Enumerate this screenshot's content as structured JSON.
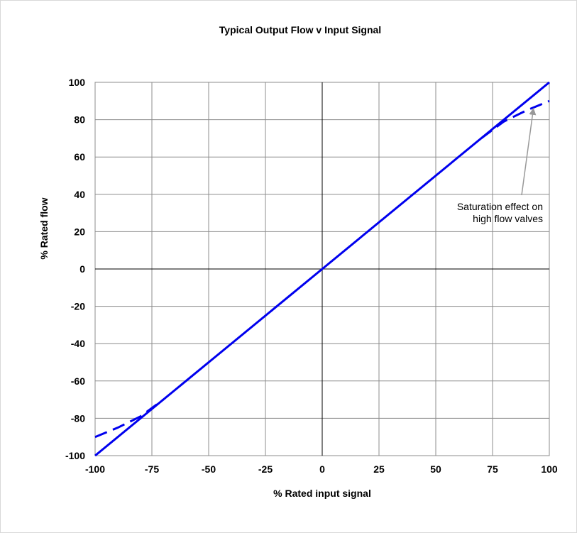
{
  "chart_data": {
    "type": "line",
    "title": "Typical Output Flow v Input Signal",
    "xlabel": "% Rated input signal",
    "ylabel": "% Rated flow",
    "xlim": [
      -100,
      100
    ],
    "ylim": [
      -100,
      100
    ],
    "x_ticks": [
      -100,
      -75,
      -50,
      -25,
      0,
      25,
      50,
      75,
      100
    ],
    "y_ticks": [
      -100,
      -80,
      -60,
      -40,
      -20,
      0,
      20,
      40,
      60,
      80,
      100
    ],
    "grid": true,
    "series": [
      {
        "style": "solid",
        "color": "#0000ee",
        "x": [
          -100,
          100
        ],
        "y": [
          -100,
          100
        ]
      },
      {
        "style": "dashed",
        "color": "#0000ee",
        "x": [
          -100,
          -90,
          -80,
          -70,
          70,
          80,
          90,
          100
        ],
        "y": [
          -90,
          -85,
          -79,
          -70,
          70,
          79,
          85,
          90
        ]
      }
    ],
    "annotations": [
      {
        "lines": [
          "Saturation effect on",
          "high flow valves"
        ],
        "arrow_to": [
          93,
          86
        ],
        "arrow_color": "#999999"
      }
    ]
  }
}
